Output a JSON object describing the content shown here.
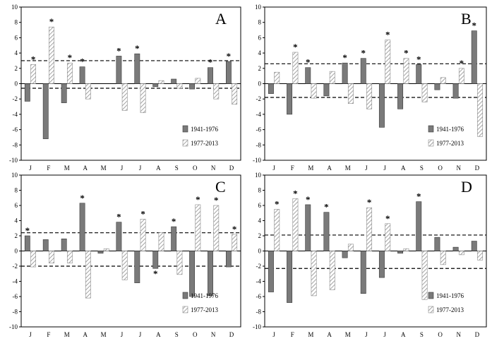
{
  "chart_data": [
    {
      "type": "bar",
      "panel_label": "A",
      "categories": [
        "J",
        "F",
        "M",
        "A",
        "M",
        "J",
        "J",
        "A",
        "S",
        "O",
        "N",
        "D"
      ],
      "ylim": [
        -10,
        10
      ],
      "yticks": [
        -10,
        -8,
        -6,
        -4,
        -2,
        0,
        2,
        4,
        6,
        8,
        10
      ],
      "upper_threshold": 3.0,
      "lower_threshold": -0.6,
      "legend_placement": "bottom-right",
      "series": [
        {
          "name": "1941-1976",
          "values": [
            -2.3,
            -7.2,
            -2.5,
            2.2,
            0.0,
            3.6,
            3.9,
            -0.4,
            0.6,
            -0.7,
            2.1,
            2.9
          ],
          "significant": [
            false,
            false,
            false,
            true,
            false,
            true,
            true,
            false,
            false,
            false,
            true,
            true
          ]
        },
        {
          "name": "1977-2013",
          "values": [
            2.5,
            7.4,
            2.7,
            -2.0,
            0.0,
            -3.5,
            -3.8,
            0.4,
            -0.6,
            0.7,
            -2.0,
            -2.7
          ],
          "significant": [
            true,
            true,
            true,
            false,
            false,
            false,
            false,
            false,
            false,
            false,
            false,
            false
          ]
        }
      ]
    },
    {
      "type": "bar",
      "panel_label": "B",
      "categories": [
        "J",
        "F",
        "M",
        "A",
        "M",
        "J",
        "J",
        "A",
        "S",
        "O",
        "N",
        "D"
      ],
      "ylim": [
        -10,
        10
      ],
      "yticks": [
        -10,
        -8,
        -6,
        -4,
        -2,
        0,
        2,
        4,
        6,
        8,
        10
      ],
      "upper_threshold": 2.6,
      "lower_threshold": -1.8,
      "legend_placement": "bottom-right",
      "series": [
        {
          "name": "1941-1976",
          "values": [
            -1.3,
            -4.0,
            2.1,
            -1.6,
            2.7,
            3.3,
            -5.7,
            -3.3,
            2.5,
            -0.8,
            -1.9,
            6.9
          ],
          "significant": [
            false,
            false,
            true,
            false,
            true,
            true,
            false,
            false,
            true,
            false,
            false,
            true
          ]
        },
        {
          "name": "1977-2013",
          "values": [
            1.5,
            4.1,
            -1.9,
            1.6,
            -2.6,
            -3.3,
            5.7,
            3.3,
            -2.4,
            0.8,
            2.0,
            -6.9
          ],
          "significant": [
            false,
            true,
            false,
            false,
            false,
            false,
            true,
            true,
            false,
            false,
            true,
            false
          ]
        }
      ]
    },
    {
      "type": "bar",
      "panel_label": "C",
      "categories": [
        "J",
        "F",
        "M",
        "A",
        "M",
        "J",
        "J",
        "A",
        "S",
        "O",
        "N",
        "D"
      ],
      "ylim": [
        -10,
        10
      ],
      "yticks": [
        -10,
        -8,
        -6,
        -4,
        -2,
        0,
        2,
        4,
        6,
        8,
        10
      ],
      "upper_threshold": 2.4,
      "lower_threshold": -2.0,
      "legend_placement": "bottom-right",
      "series": [
        {
          "name": "1941-1976",
          "values": [
            2.0,
            1.5,
            1.6,
            6.3,
            -0.3,
            3.8,
            -4.2,
            -2.3,
            3.2,
            -6.0,
            -5.9,
            -2.1
          ],
          "significant": [
            true,
            false,
            false,
            true,
            false,
            true,
            false,
            true,
            true,
            false,
            false,
            false
          ]
        },
        {
          "name": "1977-2013",
          "values": [
            -2.1,
            -1.6,
            -1.6,
            -6.2,
            0.3,
            -3.8,
            4.2,
            2.4,
            -3.1,
            6.1,
            6.0,
            2.2
          ],
          "significant": [
            false,
            false,
            false,
            false,
            false,
            false,
            true,
            false,
            false,
            true,
            true,
            true
          ]
        }
      ]
    },
    {
      "type": "bar",
      "panel_label": "D",
      "categories": [
        "J",
        "F",
        "M",
        "A",
        "M",
        "J",
        "J",
        "A",
        "S",
        "O",
        "N",
        "D"
      ],
      "ylim": [
        -10,
        10
      ],
      "yticks": [
        -10,
        -8,
        -6,
        -4,
        -2,
        0,
        2,
        4,
        6,
        8,
        10
      ],
      "upper_threshold": 2.1,
      "lower_threshold": -2.3,
      "legend_placement": "bottom-right",
      "series": [
        {
          "name": "1941-1976",
          "values": [
            -5.4,
            -6.8,
            6.1,
            5.1,
            -0.9,
            -5.6,
            -3.5,
            -0.3,
            6.5,
            1.8,
            0.5,
            1.3
          ],
          "significant": [
            false,
            false,
            true,
            true,
            false,
            false,
            false,
            false,
            true,
            false,
            false,
            false
          ]
        },
        {
          "name": "1977-2013",
          "values": [
            5.5,
            6.9,
            -5.9,
            -5.1,
            0.9,
            5.7,
            3.6,
            0.3,
            -6.4,
            -1.8,
            -0.5,
            -1.2
          ],
          "significant": [
            true,
            true,
            false,
            false,
            false,
            true,
            true,
            false,
            false,
            false,
            false,
            false
          ]
        }
      ]
    }
  ],
  "colors": {
    "series1_fill": "#7a7a7a",
    "series1_stroke": "#3a3a3a",
    "series2_hatch": "#8c8c8c",
    "axis": "#000000"
  },
  "significance_marker": "*"
}
